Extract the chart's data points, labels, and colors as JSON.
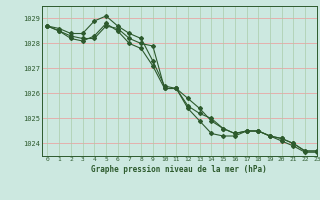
{
  "title": "Graphe pression niveau de la mer (hPa)",
  "xlim": [
    -0.5,
    23
  ],
  "ylim": [
    1023.5,
    1029.5
  ],
  "yticks": [
    1024,
    1025,
    1026,
    1027,
    1028,
    1029
  ],
  "xticks": [
    0,
    1,
    2,
    3,
    4,
    5,
    6,
    7,
    8,
    9,
    10,
    11,
    12,
    13,
    14,
    15,
    16,
    17,
    18,
    19,
    20,
    21,
    22,
    23
  ],
  "bg_color": "#cce8e0",
  "line_color": "#2d5a2d",
  "grid_color_h": "#ee9999",
  "grid_color_v": "#aaccaa",
  "line1": [
    1028.7,
    1028.5,
    1028.3,
    1028.2,
    1028.2,
    1028.7,
    1028.6,
    1028.2,
    1028.0,
    1027.9,
    1026.2,
    1026.2,
    1025.8,
    1025.4,
    1024.9,
    1024.6,
    1024.4,
    1024.5,
    1024.5,
    1024.3,
    1024.2,
    1024.0,
    1023.7,
    1023.7
  ],
  "line2": [
    1028.7,
    1028.6,
    1028.4,
    1028.4,
    1028.9,
    1029.1,
    1028.7,
    1028.4,
    1028.2,
    1027.3,
    1026.3,
    1026.2,
    1025.5,
    1025.2,
    1025.0,
    1024.6,
    1024.4,
    1024.5,
    1024.5,
    1024.3,
    1024.2,
    1024.0,
    1023.7,
    1023.7
  ],
  "line3": [
    1028.7,
    1028.5,
    1028.2,
    1028.1,
    1028.3,
    1028.8,
    1028.5,
    1028.0,
    1027.8,
    1027.1,
    1026.2,
    1026.2,
    1025.4,
    1024.9,
    1024.4,
    1024.3,
    1024.3,
    1024.5,
    1024.5,
    1024.3,
    1024.1,
    1023.9,
    1023.65,
    1023.65
  ]
}
